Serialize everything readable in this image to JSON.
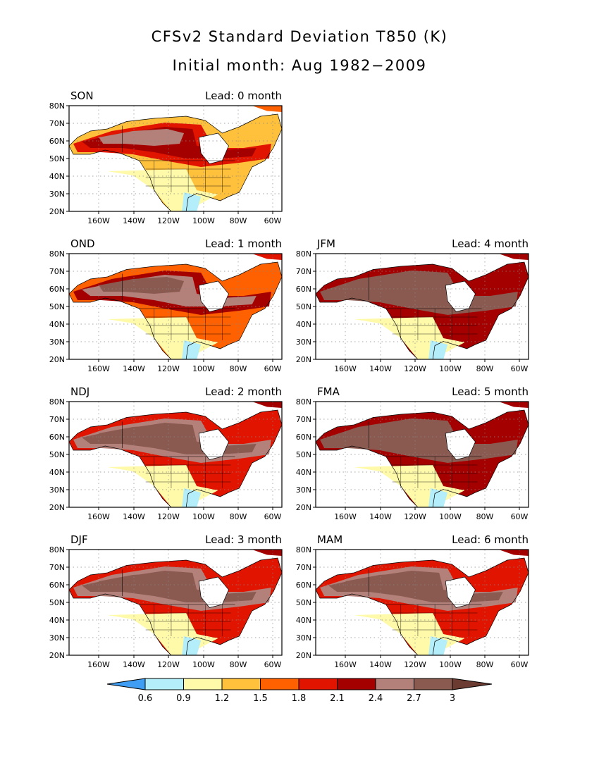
{
  "title": "CFSv2 Standard Deviation T850 (K)",
  "subtitle": "Initial month: Aug 1982−2009",
  "lat_labels": [
    "80N",
    "70N",
    "60N",
    "50N",
    "40N",
    "30N",
    "20N"
  ],
  "lon_labels": [
    "160W",
    "140W",
    "120W",
    "100W",
    "80W",
    "60W"
  ],
  "panels": [
    {
      "season": "SON",
      "lead": "Lead: 0 month",
      "level": 4
    },
    {
      "season": "OND",
      "lead": "Lead: 1 month",
      "level": 5
    },
    {
      "season": "JFM",
      "lead": "Lead: 4 month",
      "level": 7
    },
    {
      "season": "NDJ",
      "lead": "Lead: 2 month",
      "level": 6
    },
    {
      "season": "FMA",
      "lead": "Lead: 5 month",
      "level": 7
    },
    {
      "season": "DJF",
      "lead": "Lead: 3 month",
      "level": 6
    },
    {
      "season": "MAM",
      "lead": "Lead: 6 month",
      "level": 6
    }
  ],
  "colorbar": {
    "labels": [
      "0.6",
      "0.9",
      "1.2",
      "1.5",
      "1.8",
      "2.1",
      "2.4",
      "2.7",
      "3"
    ],
    "colors": [
      "#3f9ef4",
      "#b4eefa",
      "#fffaaa",
      "#ffc03c",
      "#ff6000",
      "#e11400",
      "#a50000",
      "#b4807a",
      "#8a5a50",
      "#6b3a30"
    ]
  }
}
